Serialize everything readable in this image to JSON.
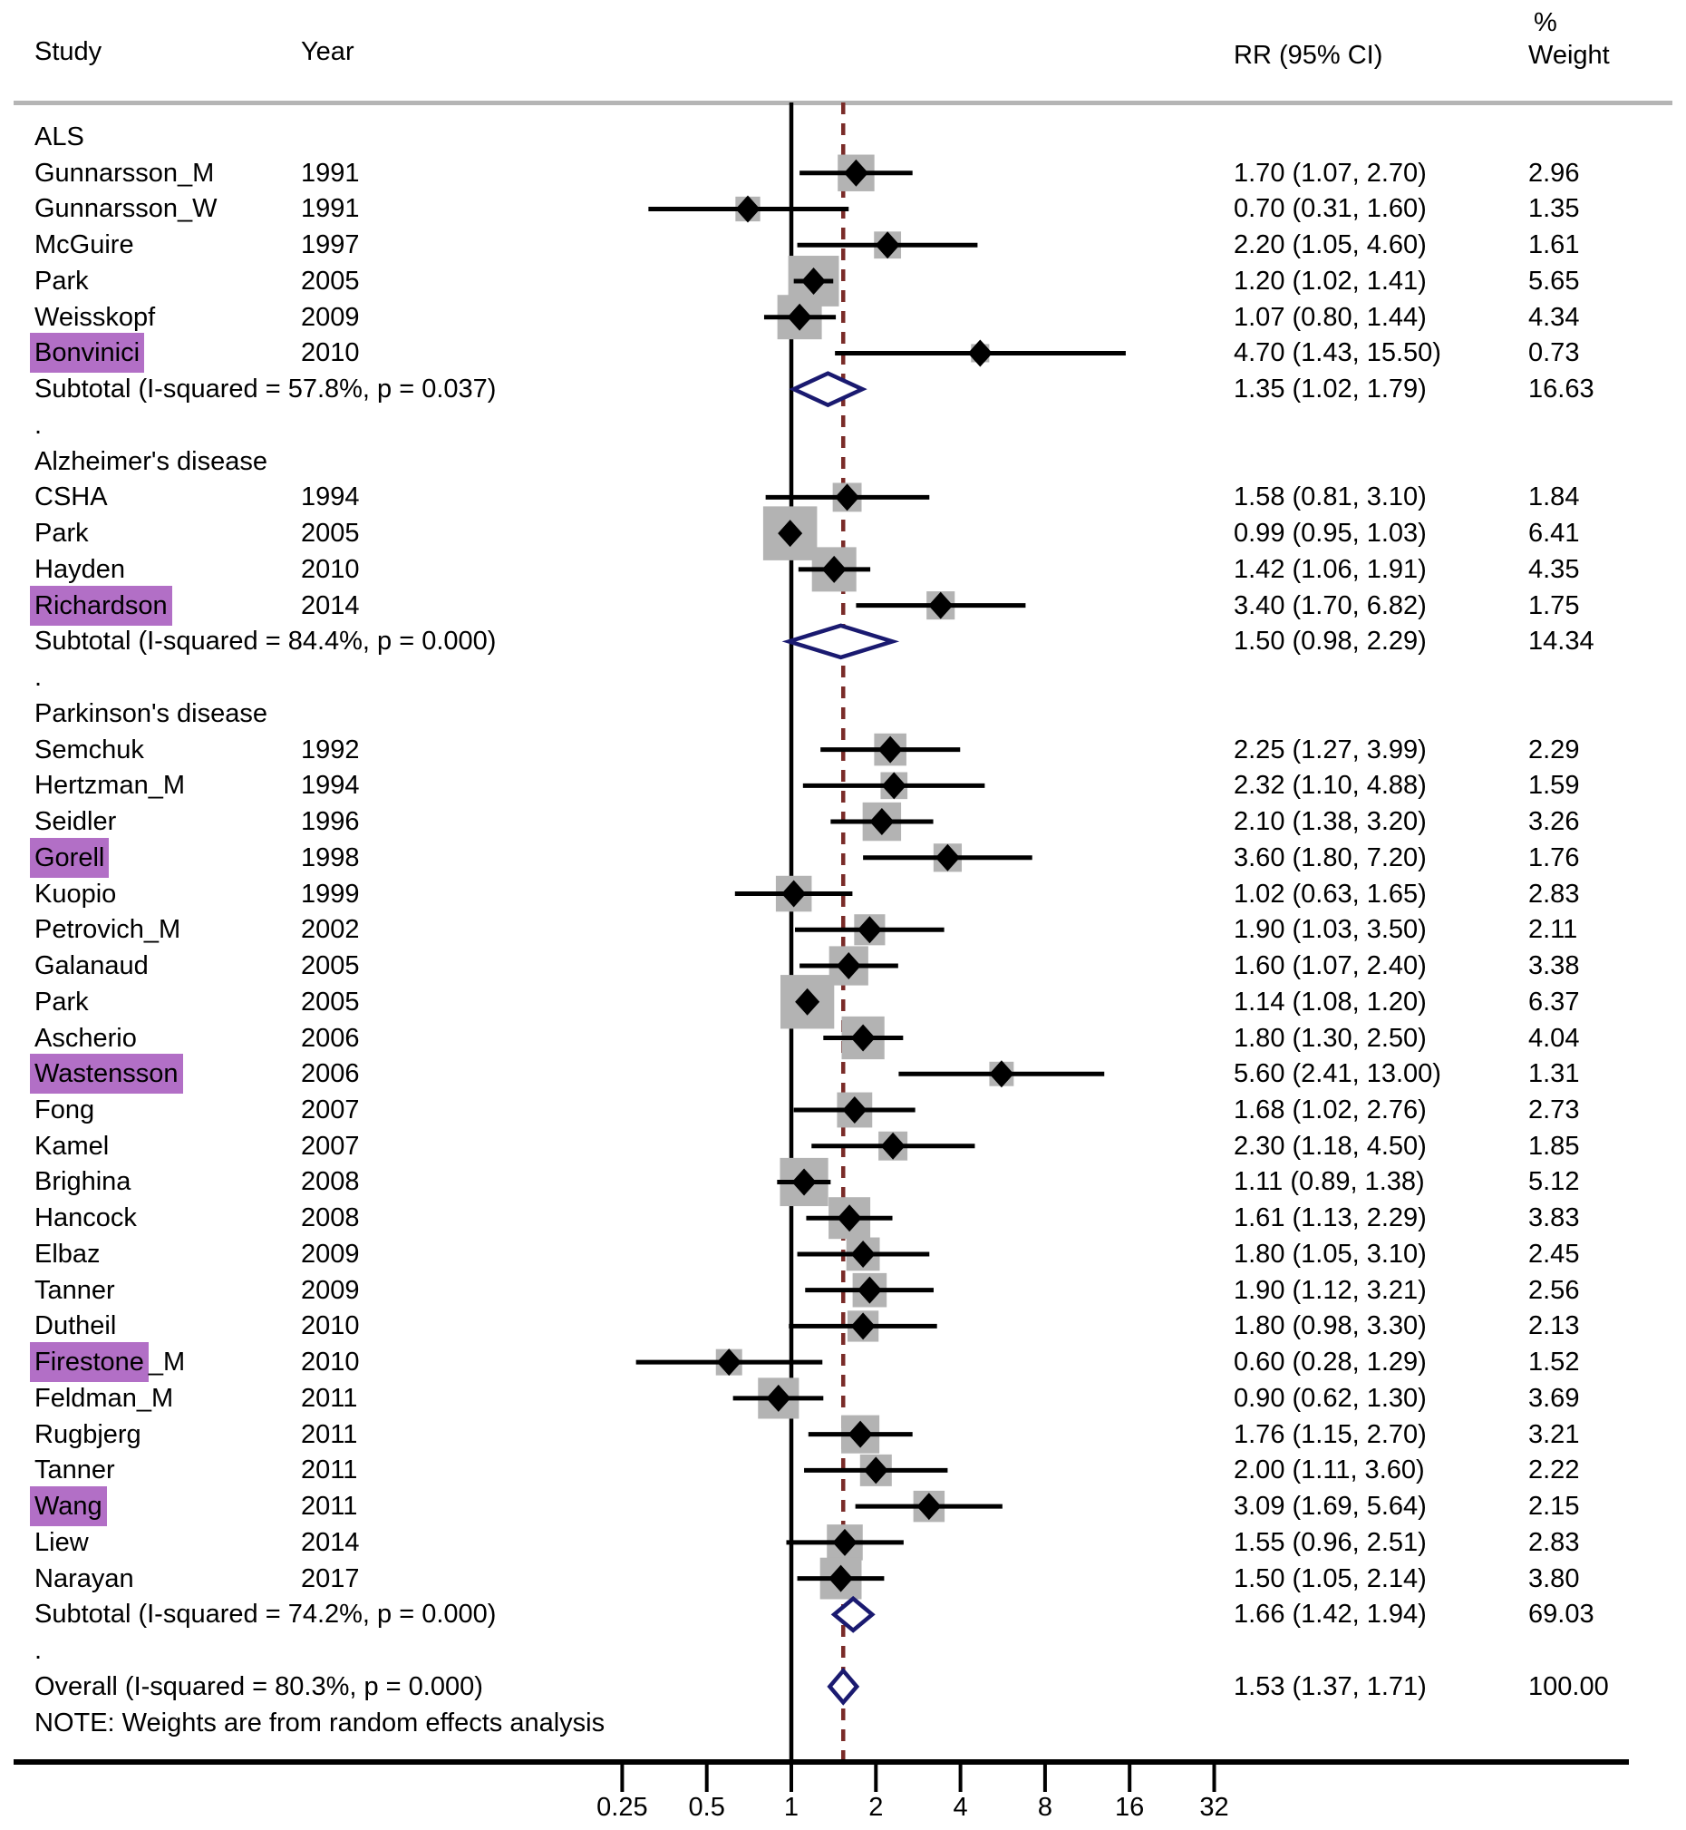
{
  "header": {
    "study": "Study",
    "year": "Year",
    "rr": "RR (95% CI)",
    "weight_pct": "%",
    "weight": "Weight"
  },
  "note": "NOTE: Weights are from random effects analysis",
  "colors": {
    "highlight": "#b26fc6",
    "diamond_outline": "#1a1a70",
    "dashed_line": "#7a2b28",
    "box_fill": "#b3b3b3",
    "separator": "#b5b5b5",
    "axis": "#000000",
    "text": "#000000"
  },
  "chart_data": {
    "type": "forest",
    "x_scale": "log2",
    "x_ticks": [
      0.25,
      0.5,
      1,
      2,
      4,
      8,
      16,
      32
    ],
    "x_tick_labels": [
      "0.25",
      "0.5",
      "1",
      "2",
      "4",
      "8",
      "16",
      "32"
    ],
    "null_line": 1,
    "overall_line": 1.53,
    "columns": [
      "Study",
      "Year",
      "RR (95% CI)",
      "% Weight"
    ],
    "groups": [
      {
        "label": "ALS",
        "studies": [
          {
            "name": "Gunnarsson_M",
            "tail": "",
            "highlight": false,
            "year": "1991",
            "rr": 1.7,
            "lo": 1.07,
            "hi": 2.7,
            "weight": 2.96,
            "rr_text": "1.70 (1.07, 2.70)",
            "weight_text": "2.96"
          },
          {
            "name": "Gunnarsson_W",
            "tail": "",
            "highlight": false,
            "year": "1991",
            "rr": 0.7,
            "lo": 0.31,
            "hi": 1.6,
            "weight": 1.35,
            "rr_text": "0.70 (0.31, 1.60)",
            "weight_text": "1.35"
          },
          {
            "name": "McGuire",
            "tail": "",
            "highlight": false,
            "year": "1997",
            "rr": 2.2,
            "lo": 1.05,
            "hi": 4.6,
            "weight": 1.61,
            "rr_text": "2.20 (1.05, 4.60)",
            "weight_text": "1.61"
          },
          {
            "name": "Park",
            "tail": "",
            "highlight": false,
            "year": "2005",
            "rr": 1.2,
            "lo": 1.02,
            "hi": 1.41,
            "weight": 5.65,
            "rr_text": "1.20 (1.02, 1.41)",
            "weight_text": "5.65"
          },
          {
            "name": "Weisskopf",
            "tail": "",
            "highlight": false,
            "year": "2009",
            "rr": 1.07,
            "lo": 0.8,
            "hi": 1.44,
            "weight": 4.34,
            "rr_text": "1.07 (0.80, 1.44)",
            "weight_text": "4.34"
          },
          {
            "name": "Bonvinici",
            "tail": "",
            "highlight": true,
            "year": "2010",
            "rr": 4.7,
            "lo": 1.43,
            "hi": 15.5,
            "weight": 0.73,
            "rr_text": "4.70 (1.43, 15.50)",
            "weight_text": "0.73"
          }
        ],
        "subtotal": {
          "label": "Subtotal  (I-squared = 57.8%, p = 0.037)",
          "rr": 1.35,
          "lo": 1.02,
          "hi": 1.79,
          "rr_text": "1.35 (1.02, 1.79)",
          "weight_text": "16.63"
        }
      },
      {
        "label": "Alzheimer's disease",
        "studies": [
          {
            "name": "CSHA",
            "tail": "",
            "highlight": false,
            "year": "1994",
            "rr": 1.58,
            "lo": 0.81,
            "hi": 3.1,
            "weight": 1.84,
            "rr_text": "1.58 (0.81, 3.10)",
            "weight_text": "1.84"
          },
          {
            "name": "Park",
            "tail": "",
            "highlight": false,
            "year": "2005",
            "rr": 0.99,
            "lo": 0.95,
            "hi": 1.03,
            "weight": 6.41,
            "rr_text": "0.99 (0.95, 1.03)",
            "weight_text": "6.41"
          },
          {
            "name": "Hayden",
            "tail": "",
            "highlight": false,
            "year": "2010",
            "rr": 1.42,
            "lo": 1.06,
            "hi": 1.91,
            "weight": 4.35,
            "rr_text": "1.42 (1.06, 1.91)",
            "weight_text": "4.35"
          },
          {
            "name": "Richardson",
            "tail": "",
            "highlight": true,
            "year": "2014",
            "rr": 3.4,
            "lo": 1.7,
            "hi": 6.82,
            "weight": 1.75,
            "rr_text": "3.40 (1.70, 6.82)",
            "weight_text": "1.75"
          }
        ],
        "subtotal": {
          "label": "Subtotal  (I-squared = 84.4%, p = 0.000)",
          "rr": 1.5,
          "lo": 0.98,
          "hi": 2.29,
          "rr_text": "1.50 (0.98, 2.29)",
          "weight_text": "14.34"
        }
      },
      {
        "label": "Parkinson's disease",
        "studies": [
          {
            "name": "Semchuk",
            "tail": "",
            "highlight": false,
            "year": "1992",
            "rr": 2.25,
            "lo": 1.27,
            "hi": 3.99,
            "weight": 2.29,
            "rr_text": "2.25 (1.27, 3.99)",
            "weight_text": "2.29"
          },
          {
            "name": "Hertzman_M",
            "tail": "",
            "highlight": false,
            "year": "1994",
            "rr": 2.32,
            "lo": 1.1,
            "hi": 4.88,
            "weight": 1.59,
            "rr_text": "2.32 (1.10, 4.88)",
            "weight_text": "1.59"
          },
          {
            "name": "Seidler",
            "tail": "",
            "highlight": false,
            "year": "1996",
            "rr": 2.1,
            "lo": 1.38,
            "hi": 3.2,
            "weight": 3.26,
            "rr_text": "2.10 (1.38, 3.20)",
            "weight_text": "3.26"
          },
          {
            "name": "Gorell",
            "tail": "",
            "highlight": true,
            "year": "1998",
            "rr": 3.6,
            "lo": 1.8,
            "hi": 7.2,
            "weight": 1.76,
            "rr_text": "3.60 (1.80, 7.20)",
            "weight_text": "1.76"
          },
          {
            "name": "Kuopio",
            "tail": "",
            "highlight": false,
            "year": "1999",
            "rr": 1.02,
            "lo": 0.63,
            "hi": 1.65,
            "weight": 2.83,
            "rr_text": "1.02 (0.63, 1.65)",
            "weight_text": "2.83"
          },
          {
            "name": "Petrovich_M",
            "tail": "",
            "highlight": false,
            "year": "2002",
            "rr": 1.9,
            "lo": 1.03,
            "hi": 3.5,
            "weight": 2.11,
            "rr_text": "1.90 (1.03, 3.50)",
            "weight_text": "2.11"
          },
          {
            "name": "Galanaud",
            "tail": "",
            "highlight": false,
            "year": "2005",
            "rr": 1.6,
            "lo": 1.07,
            "hi": 2.4,
            "weight": 3.38,
            "rr_text": "1.60 (1.07, 2.40)",
            "weight_text": "3.38"
          },
          {
            "name": "Park",
            "tail": "",
            "highlight": false,
            "year": "2005",
            "rr": 1.14,
            "lo": 1.08,
            "hi": 1.2,
            "weight": 6.37,
            "rr_text": "1.14 (1.08, 1.20)",
            "weight_text": "6.37"
          },
          {
            "name": "Ascherio",
            "tail": "",
            "highlight": false,
            "year": "2006",
            "rr": 1.8,
            "lo": 1.3,
            "hi": 2.5,
            "weight": 4.04,
            "rr_text": "1.80 (1.30, 2.50)",
            "weight_text": "4.04"
          },
          {
            "name": "Wastensson",
            "tail": "",
            "highlight": true,
            "year": "2006",
            "rr": 5.6,
            "lo": 2.41,
            "hi": 13.0,
            "weight": 1.31,
            "rr_text": "5.60 (2.41, 13.00)",
            "weight_text": "1.31"
          },
          {
            "name": "Fong",
            "tail": "",
            "highlight": false,
            "year": "2007",
            "rr": 1.68,
            "lo": 1.02,
            "hi": 2.76,
            "weight": 2.73,
            "rr_text": "1.68 (1.02, 2.76)",
            "weight_text": "2.73"
          },
          {
            "name": "Kamel",
            "tail": "",
            "highlight": false,
            "year": "2007",
            "rr": 2.3,
            "lo": 1.18,
            "hi": 4.5,
            "weight": 1.85,
            "rr_text": "2.30 (1.18, 4.50)",
            "weight_text": "1.85"
          },
          {
            "name": "Brighina",
            "tail": "",
            "highlight": false,
            "year": "2008",
            "rr": 1.11,
            "lo": 0.89,
            "hi": 1.38,
            "weight": 5.12,
            "rr_text": "1.11 (0.89, 1.38)",
            "weight_text": "5.12"
          },
          {
            "name": "Hancock",
            "tail": "",
            "highlight": false,
            "year": "2008",
            "rr": 1.61,
            "lo": 1.13,
            "hi": 2.29,
            "weight": 3.83,
            "rr_text": "1.61 (1.13, 2.29)",
            "weight_text": "3.83"
          },
          {
            "name": "Elbaz",
            "tail": "",
            "highlight": false,
            "year": "2009",
            "rr": 1.8,
            "lo": 1.05,
            "hi": 3.1,
            "weight": 2.45,
            "rr_text": "1.80 (1.05, 3.10)",
            "weight_text": "2.45"
          },
          {
            "name": "Tanner",
            "tail": "",
            "highlight": false,
            "year": "2009",
            "rr": 1.9,
            "lo": 1.12,
            "hi": 3.21,
            "weight": 2.56,
            "rr_text": "1.90 (1.12, 3.21)",
            "weight_text": "2.56"
          },
          {
            "name": "Dutheil",
            "tail": "",
            "highlight": false,
            "year": "2010",
            "rr": 1.8,
            "lo": 0.98,
            "hi": 3.3,
            "weight": 2.13,
            "rr_text": "1.80 (0.98, 3.30)",
            "weight_text": "2.13"
          },
          {
            "name": "Firestone",
            "tail": "_M",
            "highlight": true,
            "year": "2010",
            "rr": 0.6,
            "lo": 0.28,
            "hi": 1.29,
            "weight": 1.52,
            "rr_text": "0.60 (0.28, 1.29)",
            "weight_text": "1.52"
          },
          {
            "name": "Feldman_M",
            "tail": "",
            "highlight": false,
            "year": "2011",
            "rr": 0.9,
            "lo": 0.62,
            "hi": 1.3,
            "weight": 3.69,
            "rr_text": "0.90 (0.62, 1.30)",
            "weight_text": "3.69"
          },
          {
            "name": "Rugbjerg",
            "tail": "",
            "highlight": false,
            "year": "2011",
            "rr": 1.76,
            "lo": 1.15,
            "hi": 2.7,
            "weight": 3.21,
            "rr_text": "1.76 (1.15, 2.70)",
            "weight_text": "3.21"
          },
          {
            "name": "Tanner",
            "tail": "",
            "highlight": false,
            "year": "2011",
            "rr": 2.0,
            "lo": 1.11,
            "hi": 3.6,
            "weight": 2.22,
            "rr_text": "2.00 (1.11, 3.60)",
            "weight_text": "2.22"
          },
          {
            "name": "Wang",
            "tail": "",
            "highlight": true,
            "year": "2011",
            "rr": 3.09,
            "lo": 1.69,
            "hi": 5.64,
            "weight": 2.15,
            "rr_text": "3.09 (1.69, 5.64)",
            "weight_text": "2.15"
          },
          {
            "name": "Liew",
            "tail": "",
            "highlight": false,
            "year": "2014",
            "rr": 1.55,
            "lo": 0.96,
            "hi": 2.51,
            "weight": 2.83,
            "rr_text": "1.55 (0.96, 2.51)",
            "weight_text": "2.83"
          },
          {
            "name": "Narayan",
            "tail": "",
            "highlight": false,
            "year": "2017",
            "rr": 1.5,
            "lo": 1.05,
            "hi": 2.14,
            "weight": 3.8,
            "rr_text": "1.50 (1.05, 2.14)",
            "weight_text": "3.80"
          }
        ],
        "subtotal": {
          "label": "Subtotal  (I-squared = 74.2%, p = 0.000)",
          "rr": 1.66,
          "lo": 1.42,
          "hi": 1.94,
          "rr_text": "1.66 (1.42, 1.94)",
          "weight_text": "69.03"
        }
      }
    ],
    "overall": {
      "label": "Overall  (I-squared = 80.3%, p = 0.000)",
      "rr": 1.53,
      "lo": 1.37,
      "hi": 1.71,
      "rr_text": "1.53 (1.37, 1.71)",
      "weight_text": "100.00"
    }
  }
}
